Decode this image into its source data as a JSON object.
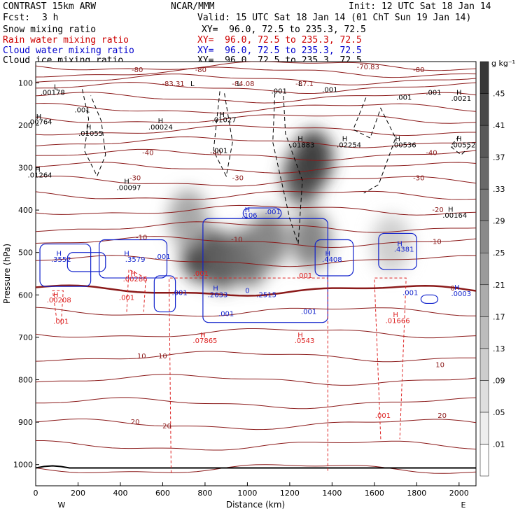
{
  "header": {
    "model": "CONTRAST 15km ARW",
    "org": "NCAR/MMM",
    "init": "Init: 12 UTC Sat 18 Jan 14",
    "fcst_label": "Fcst:",
    "fcst_value": "3 h",
    "valid": "Valid: 15 UTC Sat 18 Jan 14 (01 ChT Sun 19 Jan 14)",
    "lines": [
      {
        "field": "Snow mixing ratio",
        "xy": "XY=  96.0, 72.5 to 235.3, 72.5",
        "color": "#000000"
      },
      {
        "field": "Rain water mixing ratio",
        "xy": "XY=  96.0, 72.5 to 235.3, 72.5",
        "color": "#cc0000"
      },
      {
        "field": "Cloud water mixing ratio",
        "xy": "XY=  96.0, 72.5 to 235.3, 72.5",
        "color": "#0000cc"
      },
      {
        "field": "Cloud ice mixing ratio",
        "xy": "XY=  96.0, 72.5 to 235.3, 72.5",
        "color": "#000000"
      }
    ]
  },
  "chart_data": {
    "type": "heatmap",
    "xlabel": "Distance (km)",
    "ylabel": "Pressure (hPa)",
    "xlim": [
      0,
      2080
    ],
    "ylim": [
      1050,
      50
    ],
    "x_ticks": [
      0,
      200,
      400,
      600,
      800,
      1000,
      1200,
      1400,
      1600,
      1800,
      2000
    ],
    "y_ticks": [
      100,
      200,
      300,
      400,
      500,
      600,
      700,
      800,
      900,
      1000
    ],
    "x_end_labels": {
      "left": "W",
      "right": "E"
    },
    "colorbar": {
      "unit": "g kg⁻¹",
      "levels": [
        ".01",
        ".05",
        ".09",
        ".13",
        ".17",
        ".21",
        ".25",
        ".29",
        ".33",
        ".37",
        ".41",
        ".45"
      ]
    },
    "snow_field": [
      {
        "x": 780,
        "p": 500,
        "v": 0.48
      },
      {
        "x": 880,
        "p": 520,
        "v": 0.4
      },
      {
        "x": 1010,
        "p": 510,
        "v": 0.36
      },
      {
        "x": 1100,
        "p": 470,
        "v": 0.3
      },
      {
        "x": 1260,
        "p": 320,
        "v": 0.42
      },
      {
        "x": 1310,
        "p": 280,
        "v": 0.48
      },
      {
        "x": 1300,
        "p": 470,
        "v": 0.3
      },
      {
        "x": 720,
        "p": 420,
        "v": 0.22
      },
      {
        "x": 1680,
        "p": 480,
        "v": 0.12
      }
    ],
    "temperature_labels": [
      {
        "text": "-80",
        "x": 480,
        "p": 75
      },
      {
        "text": "-80",
        "x": 780,
        "p": 75
      },
      {
        "text": "-80",
        "x": 1810,
        "p": 75
      },
      {
        "text": "-70.83",
        "x": 1570,
        "p": 68
      },
      {
        "text": "-83.31",
        "x": 650,
        "p": 108
      },
      {
        "text": "-84.08",
        "x": 980,
        "p": 108
      },
      {
        "text": "-87.1",
        "x": 1270,
        "p": 108
      },
      {
        "text": "-40",
        "x": 530,
        "p": 270
      },
      {
        "text": "-40",
        "x": 850,
        "p": 270
      },
      {
        "text": "-40",
        "x": 1870,
        "p": 270
      },
      {
        "text": "-30",
        "x": 470,
        "p": 330
      },
      {
        "text": "-30",
        "x": 955,
        "p": 330
      },
      {
        "text": "-30",
        "x": 1810,
        "p": 330
      },
      {
        "text": "-20",
        "x": 1900,
        "p": 405
      },
      {
        "text": "-10",
        "x": 500,
        "p": 470
      },
      {
        "text": "-10",
        "x": 950,
        "p": 475
      },
      {
        "text": "-10",
        "x": 1890,
        "p": 480
      },
      {
        "text": "0",
        "x": 1970,
        "p": 590
      },
      {
        "text": "10",
        "x": 500,
        "p": 750
      },
      {
        "text": "10",
        "x": 600,
        "p": 750
      },
      {
        "text": "10",
        "x": 1910,
        "p": 770
      },
      {
        "text": "20",
        "x": 470,
        "p": 905
      },
      {
        "text": "20",
        "x": 620,
        "p": 915
      },
      {
        "text": "20",
        "x": 1920,
        "p": 890
      }
    ],
    "ice_labels": [
      {
        "text": "L",
        "x": 95,
        "p": 115
      },
      {
        "text": ".00178",
        "x": 80,
        "p": 128
      },
      {
        "text": ".001",
        "x": 220,
        "p": 170
      },
      {
        "text": "H",
        "x": 15,
        "p": 185
      },
      {
        "text": ".00764",
        "x": 20,
        "p": 198
      },
      {
        "text": "H",
        "x": 250,
        "p": 210
      },
      {
        "text": ".01055",
        "x": 260,
        "p": 225
      },
      {
        "text": "H",
        "x": 590,
        "p": 195
      },
      {
        "text": ".00024",
        "x": 590,
        "p": 210
      },
      {
        "text": "H",
        "x": 880,
        "p": 180
      },
      {
        "text": ".01027",
        "x": 890,
        "p": 193
      },
      {
        "text": ".001",
        "x": 870,
        "p": 265
      },
      {
        "text": "L",
        "x": 740,
        "p": 108
      },
      {
        "text": "L",
        "x": 960,
        "p": 108
      },
      {
        "text": "L",
        "x": 1250,
        "p": 108
      },
      {
        "text": ".001",
        "x": 1150,
        "p": 125
      },
      {
        "text": ".001",
        "x": 1390,
        "p": 122
      },
      {
        "text": "H",
        "x": 1250,
        "p": 237
      },
      {
        "text": ".01883",
        "x": 1260,
        "p": 252
      },
      {
        "text": "H",
        "x": 1460,
        "p": 237
      },
      {
        "text": ".02254",
        "x": 1480,
        "p": 252
      },
      {
        "text": "H",
        "x": 1710,
        "p": 237
      },
      {
        "text": ".00536",
        "x": 1740,
        "p": 252
      },
      {
        "text": "H",
        "x": 2000,
        "p": 237
      },
      {
        "text": ".00552",
        "x": 2020,
        "p": 252
      },
      {
        "text": "H",
        "x": 2000,
        "p": 128
      },
      {
        "text": ".0021",
        "x": 2010,
        "p": 142
      },
      {
        "text": ".001",
        "x": 1740,
        "p": 140
      },
      {
        "text": ".001",
        "x": 1880,
        "p": 128
      },
      {
        "text": "H",
        "x": 10,
        "p": 310
      },
      {
        "text": ".01264",
        "x": 20,
        "p": 323
      },
      {
        "text": "H",
        "x": 430,
        "p": 338
      },
      {
        "text": ".00097",
        "x": 440,
        "p": 353
      },
      {
        "text": "H",
        "x": 1960,
        "p": 404
      },
      {
        "text": ".00164",
        "x": 1980,
        "p": 418
      }
    ],
    "rain_labels": [
      {
        "text": "H",
        "x": 460,
        "p": 555
      },
      {
        "text": ".00286",
        "x": 470,
        "p": 568
      },
      {
        "text": "H",
        "x": 95,
        "p": 605
      },
      {
        "text": ".00208",
        "x": 110,
        "p": 618
      },
      {
        "text": ".001",
        "x": 430,
        "p": 612
      },
      {
        "text": ".001",
        "x": 120,
        "p": 668
      },
      {
        "text": ".001",
        "x": 780,
        "p": 555
      },
      {
        "text": ".001",
        "x": 1270,
        "p": 560
      },
      {
        "text": "H",
        "x": 790,
        "p": 700
      },
      {
        "text": ".07865",
        "x": 800,
        "p": 713
      },
      {
        "text": "H",
        "x": 1250,
        "p": 700
      },
      {
        "text": ".0543",
        "x": 1270,
        "p": 713
      },
      {
        "text": "H",
        "x": 1700,
        "p": 652
      },
      {
        "text": ".01666",
        "x": 1710,
        "p": 666
      },
      {
        "text": ".001",
        "x": 1640,
        "p": 890
      }
    ],
    "cloud_labels": [
      {
        "text": "H",
        "x": 110,
        "p": 508
      },
      {
        "text": ".3552",
        "x": 120,
        "p": 522
      },
      {
        "text": "H",
        "x": 430,
        "p": 508
      },
      {
        "text": ".3579",
        "x": 470,
        "p": 522
      },
      {
        "text": ".001",
        "x": 600,
        "p": 515
      },
      {
        "text": "H",
        "x": 1000,
        "p": 405
      },
      {
        "text": ".106",
        "x": 1010,
        "p": 418
      },
      {
        "text": ".001",
        "x": 1120,
        "p": 410
      },
      {
        "text": "H",
        "x": 1380,
        "p": 508
      },
      {
        "text": ".4408",
        "x": 1400,
        "p": 522
      },
      {
        "text": "H",
        "x": 1720,
        "p": 485
      },
      {
        "text": ".4381",
        "x": 1740,
        "p": 498
      },
      {
        "text": "H",
        "x": 850,
        "p": 590
      },
      {
        "text": ".2633",
        "x": 860,
        "p": 605
      },
      {
        "text": ".2515",
        "x": 1090,
        "p": 605
      },
      {
        "text": "0",
        "x": 1000,
        "p": 595
      },
      {
        "text": ".001",
        "x": 680,
        "p": 600
      },
      {
        "text": ".001",
        "x": 900,
        "p": 650
      },
      {
        "text": ".001",
        "x": 1290,
        "p": 645
      },
      {
        "text": ".001",
        "x": 1770,
        "p": 600
      },
      {
        "text": "H",
        "x": 1990,
        "p": 588
      },
      {
        "text": ".0003",
        "x": 2010,
        "p": 603
      }
    ],
    "colors": {
      "temperature": "#8b1a1a",
      "rain": "#dd2222",
      "cloud": "#1122cc",
      "ice": "#000000",
      "snow": "#303030"
    }
  }
}
